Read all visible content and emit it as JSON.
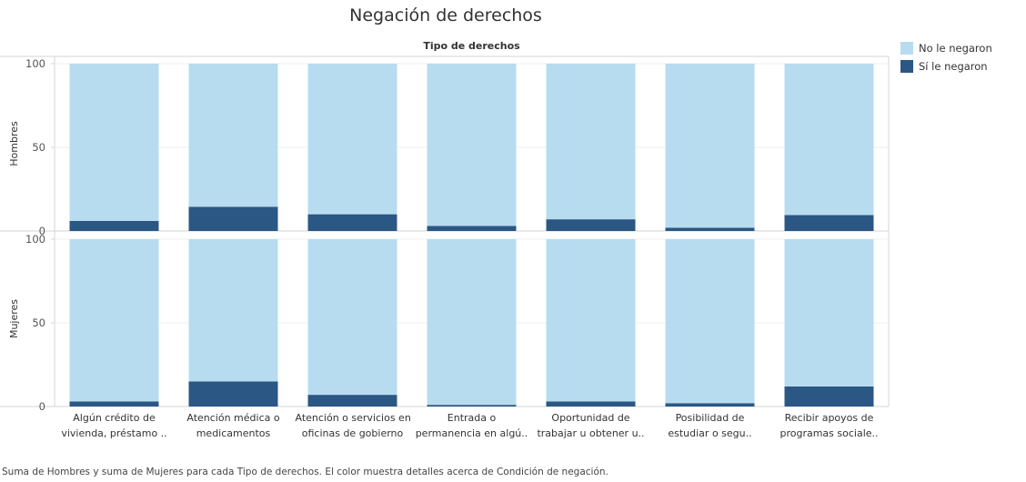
{
  "chart_data": {
    "type": "bar",
    "stacked": true,
    "title": "Negación de derechos",
    "column_header": "Tipo de derechos",
    "categories": [
      [
        "Algún crédito de",
        "vivienda, préstamo .."
      ],
      [
        "Atención médica o",
        "medicamentos"
      ],
      [
        "Atención o servicios en",
        "oficinas de gobierno"
      ],
      [
        "Entrada o",
        "permanencia en algú.."
      ],
      [
        "Oportunidad de",
        "trabajar u obtener u.."
      ],
      [
        "Posibilidad de",
        "estudiar o segu.."
      ],
      [
        "Recibir apoyos de",
        "programas sociale.."
      ]
    ],
    "panels": [
      {
        "label": "Hombres",
        "ylim": [
          0,
          100
        ],
        "yticks": [
          0,
          50,
          100
        ],
        "series": [
          {
            "name": "Sí le negaron",
            "values": [
              6,
              14.5,
              10,
              3,
              7,
              2,
              9.5
            ]
          },
          {
            "name": "No le negaron",
            "values": [
              94,
              85.5,
              90,
              97,
              93,
              98,
              90.5
            ]
          }
        ]
      },
      {
        "label": "Mujeres",
        "ylim": [
          0,
          100
        ],
        "yticks": [
          0,
          50,
          100
        ],
        "series": [
          {
            "name": "Sí le negaron",
            "values": [
              3,
              15,
              7,
              1,
              3,
              2,
              12
            ]
          },
          {
            "name": "No le negaron",
            "values": [
              97,
              85,
              93,
              99,
              97,
              98,
              88
            ]
          }
        ]
      }
    ],
    "legend": {
      "position": "top-right",
      "items": [
        {
          "label": "No le negaron",
          "color": "#b8dcef"
        },
        {
          "label": "Sí le negaron",
          "color": "#2b5784"
        }
      ]
    },
    "grid": true
  },
  "caption": "Suma de Hombres y suma de Mujeres para cada Tipo de derechos.  El color muestra detalles acerca de Condición de negación."
}
